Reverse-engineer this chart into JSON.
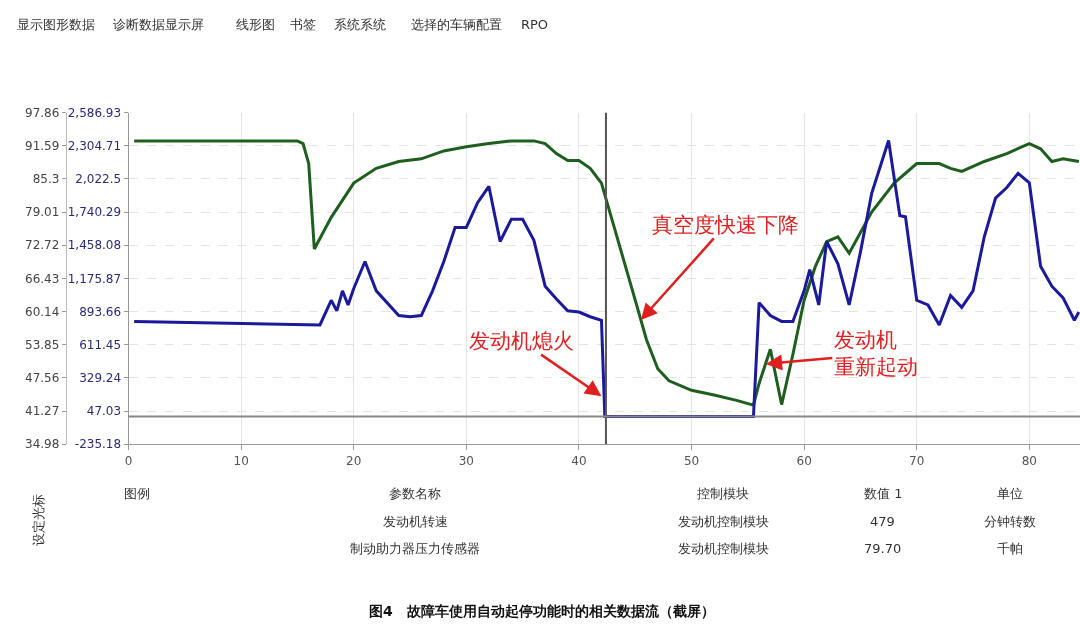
{
  "chart_data": {
    "type": "line",
    "x": [
      0.5,
      15,
      15.5,
      16,
      16.5,
      18,
      20,
      22,
      24,
      26,
      28,
      30,
      32,
      34,
      36,
      37,
      38,
      39,
      40,
      41,
      42,
      43,
      44,
      45,
      46,
      47,
      48,
      50,
      52,
      54,
      55.5,
      56,
      57,
      58,
      59,
      60,
      61,
      62,
      63,
      64,
      66,
      68,
      70,
      72,
      73,
      74,
      76,
      78,
      80,
      81,
      82,
      83,
      84.4
    ],
    "series": [
      {
        "color": "#1e5e1e",
        "values": [
          92.5,
          92.5,
          92.0,
          88.2,
          72.0,
          78.0,
          84.5,
          87.3,
          88.6,
          89.1,
          90.6,
          91.4,
          92.0,
          92.5,
          92.5,
          92.0,
          90.1,
          88.8,
          88.8,
          87.3,
          84.5,
          77.1,
          69.7,
          62.3,
          54.8,
          49.3,
          47.0,
          45.2,
          44.3,
          43.3,
          42.4,
          46.5,
          53.0,
          42.5,
          52.0,
          62.3,
          68.7,
          73.4,
          74.3,
          71.2,
          79.0,
          84.5,
          88.2,
          88.2,
          87.3,
          86.7,
          88.6,
          90.1,
          92.0,
          91.0,
          88.6,
          89.1,
          88.6
        ]
      },
      {
        "color": "#1a1a9a",
        "axis": "y2",
        "x": [
          0.5,
          17,
          18,
          18.5,
          19,
          19.5,
          20,
          21,
          22,
          24,
          25,
          26,
          27,
          28,
          29,
          30,
          31,
          32,
          33,
          34,
          35,
          36,
          37,
          38,
          39,
          40,
          41,
          42,
          42.3,
          55.5,
          56,
          57,
          58,
          59,
          60,
          60.5,
          61.3,
          62,
          63,
          64,
          65,
          66,
          67.5,
          68.5,
          69,
          70,
          71,
          72,
          73,
          74,
          75,
          76,
          77,
          78,
          79,
          80,
          81,
          82,
          83,
          84,
          84.4
        ],
        "values": [
          810,
          780,
          990,
          900,
          1070,
          950,
          1090,
          1320,
          1070,
          860,
          850,
          860,
          1070,
          1320,
          1610,
          1610,
          1820,
          1960,
          1490,
          1680,
          1680,
          1500,
          1110,
          1000,
          900,
          890,
          850,
          820,
          0,
          0,
          970,
          860,
          810,
          810,
          1070,
          1250,
          950,
          1490,
          1300,
          950,
          1400,
          1900,
          2350,
          1710,
          1700,
          990,
          950,
          780,
          1030,
          930,
          1070,
          1530,
          1860,
          1950,
          2070,
          1990,
          1280,
          1110,
          1010,
          820,
          890
        ]
      }
    ],
    "xlim": [
      0,
      84.5
    ],
    "xticks": [
      0,
      10,
      20,
      30,
      40,
      50,
      60,
      70,
      80
    ],
    "ylim": [
      34.98,
      97.86
    ],
    "yticks": [
      34.98,
      41.27,
      47.56,
      53.85,
      60.14,
      66.43,
      72.72,
      79.01,
      85.3,
      91.59,
      97.86
    ],
    "y2lim": [
      -235.18,
      2586.93
    ],
    "y2ticks": [
      -235.18,
      47.03,
      329.24,
      611.45,
      893.66,
      {
        "value": 1175.87,
        "label": "1,175.87"
      },
      {
        "value": 1458.08,
        "label": "1,458.08"
      },
      {
        "value": 1740.29,
        "label": "1,740.29"
      },
      {
        "value": 2022.5,
        "label": "2,022.5"
      },
      {
        "value": 2304.71,
        "label": "2,304.71"
      },
      {
        "value": 2586.93,
        "label": "2,586.93"
      }
    ],
    "ref_lines": [
      {
        "axis": "x",
        "value": 42.4,
        "color": "#555555"
      },
      {
        "axis": "y2",
        "value": 0,
        "color": "#888888"
      }
    ],
    "grid": true,
    "line_style": "solid",
    "marker": "none",
    "annotations": [
      {
        "text": "真空度快速下降",
        "x": 45.5,
        "y": 58.55
      },
      {
        "text": "发动机熄火",
        "x": 42.0,
        "y": 44.1
      },
      {
        "text": "发动机重新起动",
        "x": 56.6,
        "y": 50.2
      },
      "显示图形数据",
      "诊断数据显示屏",
      "线形图",
      "书签",
      "系统系统",
      "选择的车辆配置",
      "RPO",
      "设定光标",
      "图例",
      "参数名称",
      "控制模块",
      "数值 1",
      "单位",
      "发动机转速",
      "发动机控制模块",
      "479",
      "分钟转数",
      "制动助力器压力传感器",
      "发动机控制模块",
      "79.70",
      "千帕",
      "图4　故障车使用自动起停功能时的相关数据流（截屏）"
    ]
  }
}
